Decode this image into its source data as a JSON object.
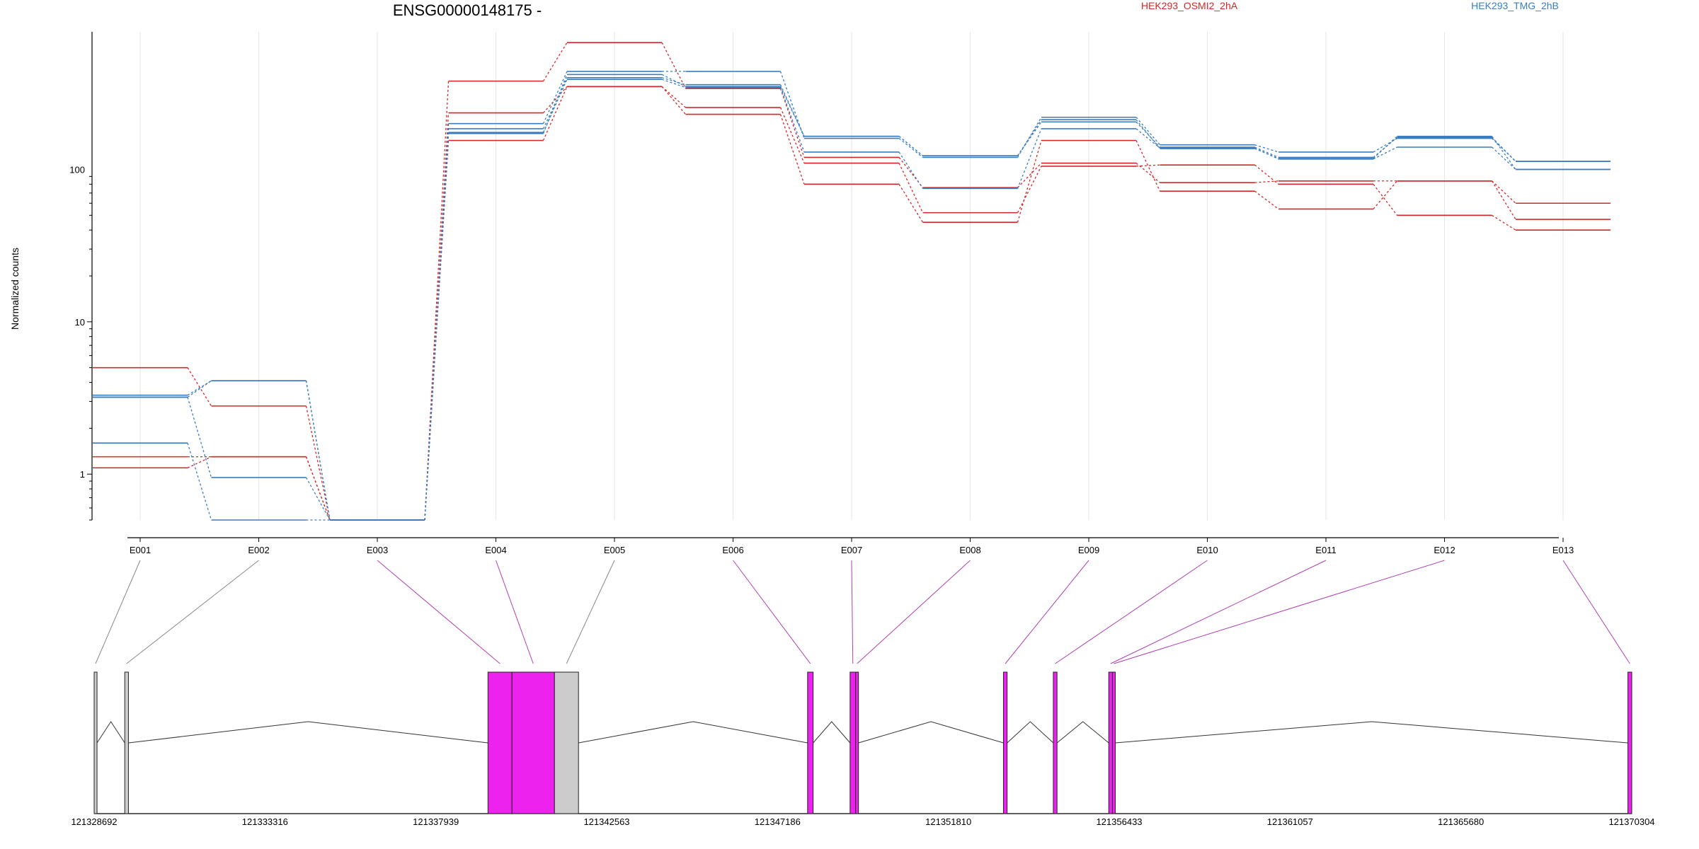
{
  "chart_data": {
    "type": "line",
    "title": "ENSG00000148175 -",
    "ylabel": "Normalized counts",
    "xlabel": "",
    "y_scale": "log",
    "ylim": [
      0.5,
      800
    ],
    "y_ticks": [
      1,
      10,
      100
    ],
    "grid": "vertical-light",
    "legend_position": "top-right",
    "colors": {
      "HEK293_OSMI2_2hA": "#d62728",
      "HEK293_TMG_2hB": "#3a7dbf",
      "exon_highlight": "#ee22ee",
      "exon_plain": "#cccccc"
    },
    "categories": [
      "E001",
      "E002",
      "E003",
      "E004",
      "E005",
      "E006",
      "E007",
      "E008",
      "E009",
      "E010",
      "E011",
      "E012",
      "E013"
    ],
    "legend": [
      {
        "name": "HEK293_OSMI2_2hA",
        "color": "#d62728"
      },
      {
        "name": "HEK293_TMG_2hB",
        "color": "#3a7dbf"
      }
    ],
    "series": [
      {
        "group": "HEK293_OSMI2_2hA",
        "values": [
          5.0,
          2.8,
          0.5,
          380,
          680,
          340,
          120,
          76,
          110,
          82,
          84,
          84,
          60
        ]
      },
      {
        "group": "HEK293_OSMI2_2hA",
        "values": [
          1.3,
          1.3,
          0.5,
          235,
          350,
          255,
          110,
          52,
          105,
          107,
          80,
          50,
          40
        ]
      },
      {
        "group": "HEK293_OSMI2_2hA",
        "values": [
          1.1,
          1.3,
          0.5,
          155,
          350,
          230,
          80,
          45,
          155,
          72,
          55,
          84,
          47
        ]
      },
      {
        "group": "HEK293_TMG_2hB",
        "values": [
          3.3,
          4.1,
          0.5,
          200,
          440,
          440,
          160,
          120,
          220,
          145,
          130,
          160,
          113
        ]
      },
      {
        "group": "HEK293_TMG_2hB",
        "values": [
          3.2,
          4.1,
          0.5,
          185,
          400,
          360,
          165,
          123,
          205,
          140,
          120,
          162,
          113
        ]
      },
      {
        "group": "HEK293_TMG_2hB",
        "values": [
          1.6,
          0.5,
          0.5,
          175,
          390,
          345,
          130,
          75,
          185,
          138,
          117,
          140,
          100
        ]
      },
      {
        "group": "HEK293_TMG_2hB",
        "values": [
          3.2,
          0.95,
          0.5,
          172,
          420,
          350,
          165,
          123,
          212,
          137,
          118,
          165,
          100
        ]
      }
    ],
    "gene_model": {
      "genomic_range": [
        121328692,
        121370304
      ],
      "coordinate_ticks": [
        "121328692",
        "121333316",
        "121337939",
        "121342563",
        "121347186",
        "121351810",
        "121356433",
        "121361057",
        "121365680",
        "121370304"
      ],
      "exons": [
        {
          "id": "E001",
          "start": 121328692,
          "end": 121328770,
          "highlight": false
        },
        {
          "id": "E002",
          "start": 121329520,
          "end": 121329620,
          "highlight": false
        },
        {
          "id": "E003",
          "start": 121339350,
          "end": 121340000,
          "highlight": true
        },
        {
          "id": "E004",
          "start": 121340000,
          "end": 121341150,
          "highlight": true
        },
        {
          "id": "E005",
          "start": 121341150,
          "end": 121341800,
          "highlight": false
        },
        {
          "id": "E006",
          "start": 121348000,
          "end": 121348150,
          "highlight": true
        },
        {
          "id": "E007",
          "start": 121349150,
          "end": 121349300,
          "highlight": true
        },
        {
          "id": "E008",
          "start": 121349300,
          "end": 121349370,
          "highlight": true
        },
        {
          "id": "E009",
          "start": 121353300,
          "end": 121353400,
          "highlight": true
        },
        {
          "id": "E010",
          "start": 121354650,
          "end": 121354750,
          "highlight": true
        },
        {
          "id": "E011",
          "start": 121356150,
          "end": 121356250,
          "highlight": true
        },
        {
          "id": "E012",
          "start": 121356250,
          "end": 121356300,
          "highlight": true
        },
        {
          "id": "E013",
          "start": 121370200,
          "end": 121370304,
          "highlight": true
        }
      ]
    }
  }
}
